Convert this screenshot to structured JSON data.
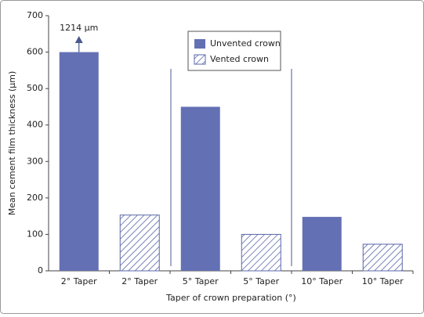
{
  "chart_data": {
    "type": "bar",
    "categories": [
      "2° Taper",
      "2° Taper",
      "5° Taper",
      "5° Taper",
      "10° Taper",
      "10° Taper"
    ],
    "series": [
      {
        "name": "Unvented crown",
        "color": "#6470b4",
        "hatch": false,
        "values": [
          600,
          null,
          450,
          null,
          148,
          null
        ]
      },
      {
        "name": "Vented crown",
        "color": "#5a67a8",
        "hatch": true,
        "values": [
          null,
          153,
          null,
          100,
          null,
          73
        ]
      }
    ],
    "annotation": "1214 μm",
    "ylabel": "Mean cement film thickness (μm)",
    "xlabel": "Taper of crown preparation (°)",
    "ylim": [
      0,
      700
    ],
    "yticks": [
      0,
      100,
      200,
      300,
      400,
      500,
      600,
      700
    ],
    "grid": false
  }
}
